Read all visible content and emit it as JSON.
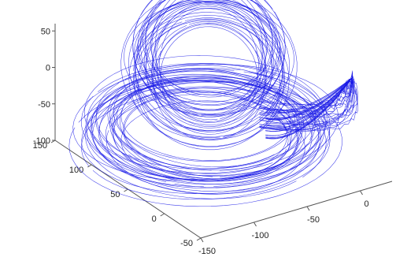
{
  "chart_data": {
    "type": "line",
    "projection": "3d",
    "title": "",
    "xlabel": "",
    "ylabel": "",
    "zlabel": "",
    "grid": false,
    "color": "#1a1ae6",
    "x_axis": {
      "ticks": [
        -150,
        -100,
        -50,
        0
      ],
      "tick_labels": [
        "-150",
        "-100",
        "-50",
        "0"
      ],
      "lim": [
        -150,
        30
      ]
    },
    "y_axis": {
      "ticks": [
        -50,
        0,
        50,
        100,
        150
      ],
      "tick_labels": [
        "-50",
        "0",
        "50",
        "100",
        "150"
      ],
      "lim": [
        -50,
        150
      ]
    },
    "z_axis": {
      "ticks": [
        -100,
        -50,
        0,
        50
      ],
      "tick_labels": [
        "-100",
        "-50",
        "0",
        "50"
      ],
      "lim": [
        -100,
        60
      ]
    },
    "series": [
      {
        "kind": "chaotic-attractor",
        "center_lobe": {
          "x": -60,
          "y": 70,
          "z": -10
        },
        "upper_ring_radius": 70,
        "lower_ring_radius": 110,
        "z_range": [
          -95,
          55
        ],
        "spike_tip": {
          "x": 20,
          "y": -10,
          "z": 10
        }
      }
    ]
  }
}
